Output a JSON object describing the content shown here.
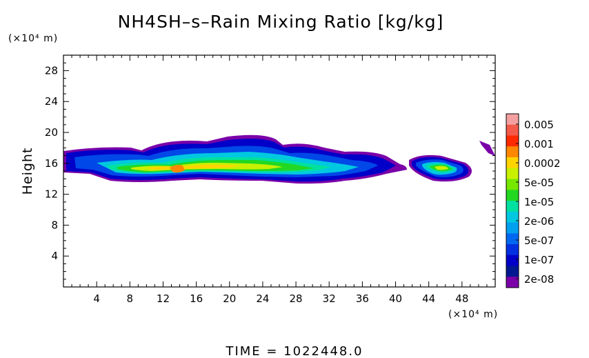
{
  "chart_data": {
    "type": "heatmap",
    "title": "NH4SH–s–Rain Mixing Ratio [kg/kg]",
    "ylabel": "Height",
    "x_unit": "(×10⁴ m)",
    "y_unit": "(×10⁴ m)",
    "xlim": [
      0,
      52
    ],
    "ylim": [
      0,
      30
    ],
    "x_ticks": [
      4,
      8,
      12,
      16,
      20,
      24,
      28,
      32,
      36,
      40,
      44,
      48
    ],
    "y_ticks": [
      4,
      8,
      12,
      16,
      20,
      24,
      28
    ],
    "colorbar": {
      "labels": [
        "0.005",
        "0.001",
        "0.0002",
        "5e-05",
        "1e-05",
        "2e-06",
        "5e-07",
        "1e-07",
        "2e-08"
      ],
      "colors_top_to_bottom": [
        "#f4a0a0",
        "#f45a4a",
        "#ff2a00",
        "#ff8800",
        "#ffd400",
        "#c8f000",
        "#76e800",
        "#22d822",
        "#00e0a0",
        "#00c8e0",
        "#00a0f0",
        "#0068f0",
        "#0030e0",
        "#0000c8",
        "#001890",
        "#7a00a8"
      ]
    },
    "time_label": "TIME  =  1022448.0",
    "regions": [
      {
        "level": 0,
        "x": [
          0,
          50.5
        ],
        "y": [
          14,
          18.5
        ],
        "note": "outer envelope ~2e-08 (purple)"
      },
      {
        "level": 1,
        "x": [
          1,
          49
        ],
        "y": [
          14,
          18
        ],
        "note": "1e-07 (blue)"
      },
      {
        "level": 3,
        "x": [
          5,
          47
        ],
        "y": [
          14.3,
          17
        ],
        "note": "5e-07 to 2e-06 (cyan/teal)"
      },
      {
        "level": 5,
        "x": [
          7,
          44
        ],
        "y": [
          14.6,
          16.5
        ],
        "note": "1e-05 (green)"
      },
      {
        "level": 6,
        "x": [
          9,
          30
        ],
        "y": [
          15,
          16.2
        ],
        "note": "5e-05 (yellow)"
      },
      {
        "level": 7,
        "x": [
          12,
          14
        ],
        "y": [
          15,
          15.6
        ],
        "note": "0.0002 (orange max)"
      }
    ]
  }
}
